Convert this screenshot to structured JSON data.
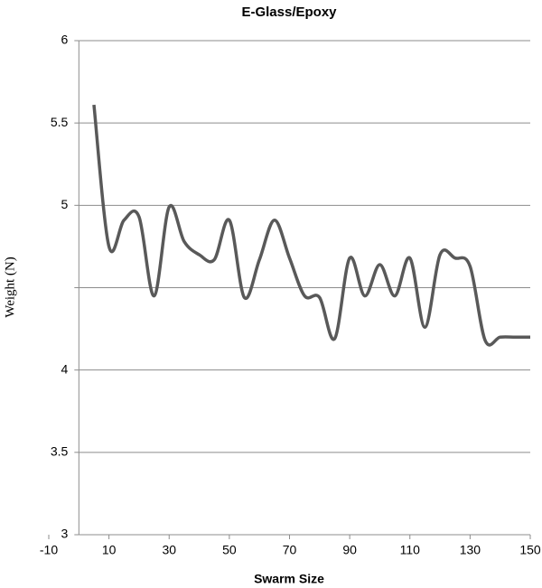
{
  "chart_data": {
    "type": "line",
    "title": "E-Glass/Epoxy",
    "x_label": "Swarm Size",
    "y_label": "Weight (N)",
    "x": [
      5,
      10,
      15,
      20,
      25,
      30,
      35,
      40,
      45,
      50,
      55,
      60,
      65,
      70,
      75,
      80,
      85,
      90,
      95,
      100,
      105,
      110,
      115,
      120,
      125,
      130,
      135,
      140,
      145,
      150
    ],
    "series": [
      {
        "name": "Weight",
        "color": "#595959",
        "values": [
          5.61,
          4.75,
          4.91,
          4.93,
          4.45,
          4.99,
          4.78,
          4.7,
          4.67,
          4.91,
          4.44,
          4.67,
          4.91,
          4.68,
          4.45,
          4.44,
          4.19,
          4.68,
          4.45,
          4.64,
          4.45,
          4.68,
          4.26,
          4.7,
          4.68,
          4.63,
          4.18,
          4.2,
          4.2,
          4.2
        ]
      }
    ],
    "xlim": [
      -10,
      150
    ],
    "xticks": [
      -10,
      10,
      30,
      50,
      70,
      90,
      110,
      130,
      150
    ],
    "ylim": [
      3,
      6
    ],
    "yticks": [
      3,
      3.5,
      4,
      {
        "value": 4.5,
        "label": null
      },
      5,
      5.5,
      6
    ],
    "y_axis_crosses_x": 0,
    "grid": true,
    "smooth": true
  }
}
